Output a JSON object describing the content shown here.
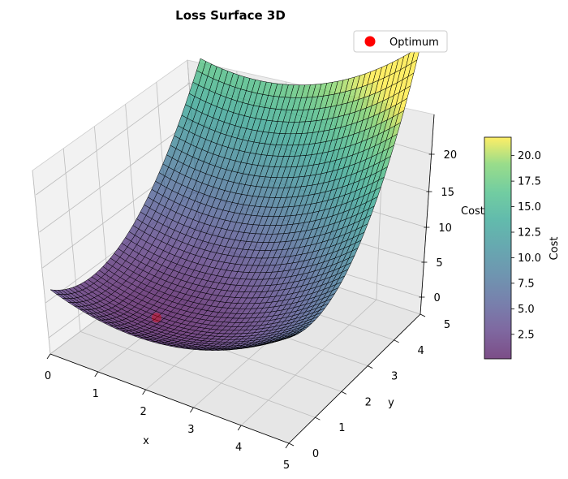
{
  "chart_data": {
    "type": "surface3d",
    "title": "Loss Surface 3D",
    "function_note": "",
    "x_range": [
      0,
      5
    ],
    "y_range": [
      0,
      5
    ],
    "z_range": [
      0,
      22
    ],
    "grid_resolution": 40,
    "xlabel": "x",
    "ylabel": "y",
    "zlabel": "Cost",
    "x_ticks": [
      "0",
      "1",
      "2",
      "3",
      "4",
      "5"
    ],
    "y_ticks": [
      "0",
      "1",
      "2",
      "3",
      "4",
      "5"
    ],
    "z_ticks": [
      "0",
      "5",
      "10",
      "15",
      "20"
    ],
    "surface": {
      "min_point": {
        "x": 1.5,
        "y": 1.2,
        "z": 0.1
      },
      "corners": [
        {
          "x": 0,
          "y": 0,
          "z": 3.7
        },
        {
          "x": 5,
          "y": 0,
          "z": 14.5
        },
        {
          "x": 0,
          "y": 5,
          "z": 16.7
        },
        {
          "x": 5,
          "y": 5,
          "z": 21.8
        }
      ],
      "colormap": "viridis",
      "alpha": 0.7,
      "edge_color": "#000000"
    },
    "optimum": {
      "label": "Optimum",
      "x": 1.5,
      "y": 1.2,
      "z": 0.1,
      "color": "#ff0000"
    },
    "colorbar": {
      "label": "Cost",
      "range": [
        0.1,
        21.8
      ],
      "ticks": [
        "2.5",
        "5.0",
        "7.5",
        "10.0",
        "12.5",
        "15.0",
        "17.5",
        "20.0"
      ]
    },
    "legend": {
      "location": "top-right",
      "entries": [
        "Optimum"
      ]
    },
    "grid": true
  }
}
